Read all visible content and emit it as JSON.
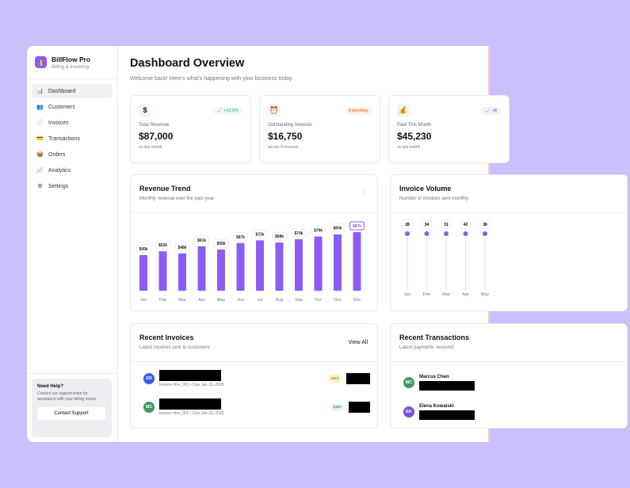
{
  "app": {
    "name": "BillFlow Pro",
    "tagline": "Billing & Invoicing"
  },
  "sidebar": {
    "items": [
      {
        "label": "Dashboard",
        "icon": "bar-chart-icon",
        "glyph": "📊",
        "active": true
      },
      {
        "label": "Customers",
        "icon": "users-icon",
        "glyph": "👥"
      },
      {
        "label": "Invoices",
        "icon": "document-icon",
        "glyph": "📄"
      },
      {
        "label": "Transactions",
        "icon": "credit-card-icon",
        "glyph": "💳"
      },
      {
        "label": "Orders",
        "icon": "package-icon",
        "glyph": "📦"
      },
      {
        "label": "Analytics",
        "icon": "trend-chart-icon",
        "glyph": "📈"
      },
      {
        "label": "Settings",
        "icon": "gear-icon",
        "glyph": "⚙"
      }
    ],
    "help": {
      "title": "Need Help?",
      "text": "Contact our support team for assistance with your billing needs.",
      "button": "Contact Support"
    }
  },
  "header": {
    "title": "Dashboard Overview",
    "subtitle": "Welcome back! Here's what's happening with your business today."
  },
  "stats": [
    {
      "label": "Total Revenue",
      "value": "$87,000",
      "footer": "vs last month",
      "badge": "📈 +12.5%",
      "icon": "$",
      "bg": "#eefbf1",
      "badge_bg": "#eefbf1",
      "badge_color": "#16a34a"
    },
    {
      "label": "Outstanding Invoices",
      "value": "$16,750",
      "footer": "across 8 invoices",
      "badge": "8 pending",
      "icon": "⏰",
      "bg": "#fff3ea",
      "badge_bg": "#fff1e6",
      "badge_color": "#ea580c"
    },
    {
      "label": "Paid This Month",
      "value": "$45,230",
      "footer": "vs last month",
      "badge": "📈 +8",
      "icon": "💰",
      "bg": "#eef4ff",
      "badge_bg": "#eef2ff",
      "badge_color": "#4f46e5"
    }
  ],
  "revenue": {
    "title": "Revenue Trend",
    "subtitle": "Monthly revenue over the past year"
  },
  "volume": {
    "title": "Invoice Volume",
    "subtitle": "Number of invoices sent monthly"
  },
  "chart_data": [
    {
      "type": "bar",
      "categories": [
        "Jan",
        "Feb",
        "Mar",
        "Apr",
        "May",
        "Jun",
        "Jul",
        "Aug",
        "Sep",
        "Oct",
        "Nov",
        "Dec"
      ],
      "values": [
        45,
        52,
        48,
        61,
        55,
        67,
        72,
        68,
        74,
        79,
        83,
        87
      ],
      "labels": [
        "$45k",
        "$52k",
        "$48k",
        "$61k",
        "$55k",
        "$67k",
        "$72k",
        "$68k",
        "$74k",
        "$79k",
        "$83k",
        "$87k"
      ],
      "unit": "$k",
      "highlight": "Dec",
      "color": "#8b5cf6"
    },
    {
      "type": "lollipop",
      "categories": [
        "Jan",
        "Feb",
        "Mar",
        "Apr",
        "May"
      ],
      "values": [
        28,
        34,
        31,
        42,
        38
      ],
      "color": "#8b5cf6"
    }
  ],
  "invoices": {
    "title": "Recent Invoices",
    "subtitle": "Latest invoices sent to customers",
    "view_all": "View All",
    "rows": [
      {
        "initials": "SR",
        "color": "#3b5bdb",
        "meta": "Invoice #inv_001 • Due Jan 15, 2025",
        "status": "sent",
        "status_bg": "#fef3c7",
        "status_color": "#a16207"
      },
      {
        "initials": "MC",
        "color": "#3f9a64",
        "meta": "Invoice #inv_002 • Due Jan 20, 2025",
        "status": "paid",
        "status_bg": "#e8f8ee",
        "status_color": "#15803d"
      }
    ]
  },
  "transactions": {
    "title": "Recent Transactions",
    "subtitle": "Latest payments received",
    "rows": [
      {
        "initials": "MC",
        "color": "#3f9a64",
        "name": "Marcus Chen"
      },
      {
        "initials": "EK",
        "color": "#7c4dde",
        "name": "Elena Kowalski"
      }
    ]
  }
}
